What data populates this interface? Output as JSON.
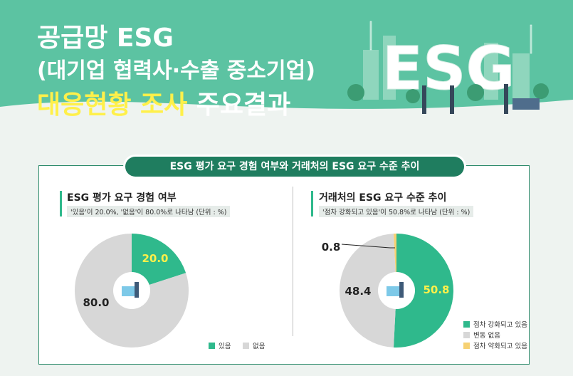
{
  "header": {
    "line1": "공급망 ESG",
    "line2": "(대기업 협력사·수출 중소기업)",
    "line3_highlight": "대응현황 조사",
    "line3_rest": " 주요결과",
    "illustration_letters": "ESG"
  },
  "section_title": "ESG 평가 요구 경험 여부와 거래처의 ESG 요구 수준 추이",
  "colors": {
    "green": "#2fb98c",
    "gray": "#d7d7d7",
    "yellow": "#f6d173",
    "label_green": "#fff04a",
    "label_dark": "#222222"
  },
  "chart_data": [
    {
      "type": "pie",
      "title": "ESG 평가 요구 경험 여부",
      "subtitle": "'있음'이 20.0%, '없음'이 80.0%로 나타남 (단위 : %)",
      "categories": [
        "있음",
        "없음"
      ],
      "values": [
        20.0,
        80.0
      ],
      "value_labels": [
        "20.0",
        "80.0"
      ],
      "legend": [
        "있음",
        "없음"
      ],
      "legend_position": "bottom-right"
    },
    {
      "type": "pie",
      "title": "거래처의 ESG 요구 수준 추이",
      "subtitle": "'점차 강화되고 있음'이 50.8%로 나타남 (단위 : %)",
      "categories": [
        "점차 강화되고 있음",
        "변동 없음",
        "점차 약화되고 있음"
      ],
      "values": [
        50.8,
        48.4,
        0.8
      ],
      "value_labels": [
        "50.8",
        "48.4",
        "0.8"
      ],
      "legend": [
        "점차 강화되고 있음",
        "변동 없음",
        "점차 약화되고 있음"
      ],
      "legend_position": "bottom-right"
    }
  ]
}
